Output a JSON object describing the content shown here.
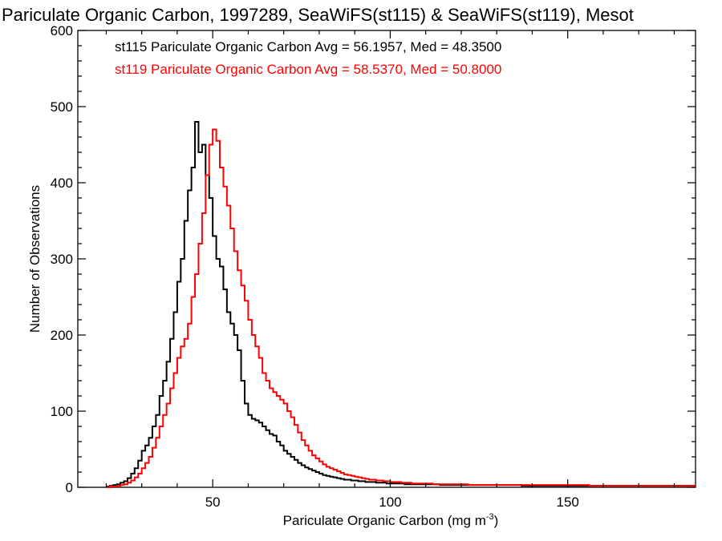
{
  "chart_data": {
    "type": "histogram",
    "title": "Pariculate Organic Carbon, 1997289, SeaWiFS(st115) & SeaWiFS(st119), Mesot",
    "xlabel": "Pariculate Organic Carbon (mg m",
    "xlabel_exponent": "-3",
    "xlabel_suffix": ")",
    "ylabel": "Number of Observations",
    "xlim": [
      12,
      186
    ],
    "ylim": [
      0,
      600
    ],
    "x_ticks": [
      50,
      100,
      150
    ],
    "y_ticks": [
      0,
      100,
      200,
      300,
      400,
      500,
      600
    ],
    "x_tick_labels": [
      "50",
      "100",
      "150"
    ],
    "y_tick_labels": [
      "0",
      "100",
      "200",
      "300",
      "400",
      "500",
      "600"
    ],
    "bin_width": 1,
    "series": [
      {
        "name": "st115",
        "color": "#000000",
        "legend": "st115 Pariculate Organic Carbon Avg = 56.1957, Med = 48.3500",
        "x_start": 20,
        "counts": [
          1,
          2,
          3,
          4,
          6,
          8,
          12,
          18,
          25,
          35,
          48,
          55,
          65,
          80,
          95,
          120,
          140,
          165,
          195,
          230,
          270,
          300,
          350,
          390,
          420,
          480,
          440,
          450,
          410,
          380,
          330,
          300,
          290,
          260,
          230,
          215,
          200,
          180,
          140,
          110,
          95,
          90,
          88,
          85,
          80,
          75,
          70,
          68,
          60,
          55,
          48,
          44,
          40,
          36,
          32,
          29,
          26,
          24,
          22,
          20,
          18,
          16,
          15,
          14,
          13,
          12,
          11,
          10,
          10,
          9,
          9,
          8,
          8,
          7,
          7,
          7,
          6,
          6,
          6,
          5,
          5,
          5,
          5,
          5,
          4,
          4,
          4,
          4,
          4,
          4,
          4,
          4,
          4,
          4,
          3,
          3,
          3,
          3,
          3,
          3,
          3,
          3,
          3,
          3,
          3,
          3,
          3,
          3,
          3,
          3,
          3,
          3,
          3,
          3,
          3,
          3,
          3,
          2,
          2,
          2,
          2,
          2,
          2,
          2,
          2,
          2,
          2,
          2,
          2,
          2,
          2,
          2,
          2,
          2,
          2,
          2,
          2,
          2,
          2,
          2,
          2,
          2,
          2,
          2,
          2,
          2,
          2,
          2,
          2,
          2,
          2,
          2,
          2,
          2,
          2,
          2,
          2,
          2,
          2,
          2,
          2,
          2,
          2,
          2,
          2,
          2,
          2
        ]
      },
      {
        "name": "st119",
        "color": "#ff0000",
        "legend": "st119 Pariculate Organic Carbon Avg = 58.5370, Med = 50.8000",
        "x_start": 20,
        "counts": [
          0,
          1,
          1,
          2,
          3,
          4,
          6,
          9,
          13,
          18,
          25,
          32,
          40,
          52,
          65,
          80,
          95,
          110,
          130,
          150,
          170,
          185,
          195,
          215,
          250,
          280,
          320,
          360,
          410,
          450,
          470,
          455,
          420,
          395,
          370,
          340,
          310,
          285,
          265,
          245,
          220,
          200,
          185,
          170,
          150,
          140,
          130,
          125,
          120,
          115,
          110,
          100,
          92,
          82,
          72,
          62,
          55,
          48,
          42,
          38,
          34,
          30,
          27,
          25,
          23,
          21,
          19,
          17,
          16,
          15,
          14,
          13,
          12,
          11,
          10,
          10,
          9,
          9,
          8,
          8,
          7,
          7,
          7,
          6,
          6,
          6,
          5,
          5,
          5,
          5,
          5,
          5,
          4,
          4,
          4,
          4,
          4,
          4,
          4,
          4,
          4,
          4,
          3,
          3,
          3,
          3,
          3,
          3,
          3,
          3,
          3,
          3,
          3,
          3,
          3,
          3,
          3,
          3,
          3,
          3,
          3,
          3,
          3,
          3,
          3,
          3,
          3,
          3,
          3,
          3,
          3,
          3,
          3,
          3,
          3,
          3,
          2,
          2,
          2,
          2,
          2,
          2,
          2,
          2,
          2,
          2,
          2,
          2,
          2,
          2,
          2,
          2,
          2,
          2,
          2,
          2,
          2,
          2,
          2,
          2,
          2,
          2,
          2,
          2,
          2,
          2,
          2
        ]
      }
    ]
  }
}
